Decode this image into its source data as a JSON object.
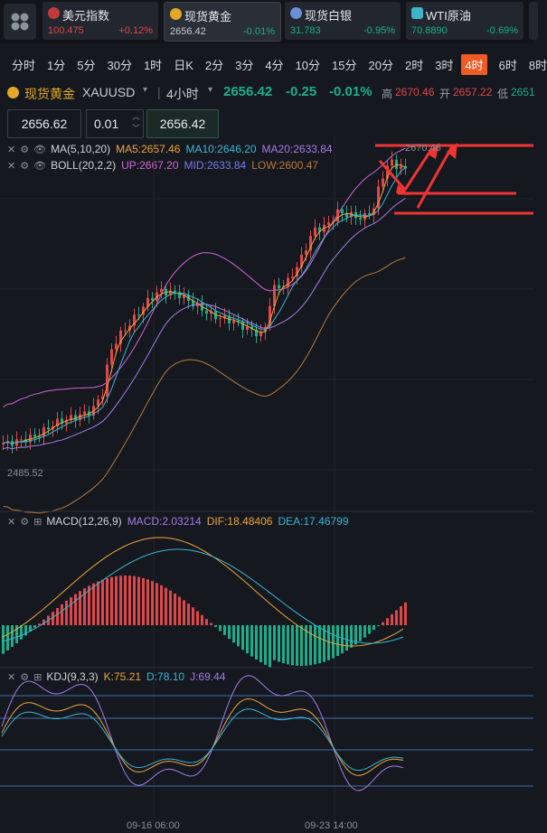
{
  "tickers": [
    {
      "name": "美元指数",
      "price": "100.475",
      "change": "+0.12%",
      "dir": "up",
      "icon": "us-flag-icon",
      "color": "#d04040"
    },
    {
      "name": "现货黄金",
      "price": "2656.42",
      "change": "-0.01%",
      "dir": "dn",
      "icon": "gold-coin-icon",
      "color": "#e2a826"
    },
    {
      "name": "现货白银",
      "price": "31.783",
      "change": "-0.95%",
      "dir": "dn",
      "icon": "silver-coin-icon",
      "color": "#6d8fd6"
    },
    {
      "name": "WTI原油",
      "price": "70.8890",
      "change": "-0.69%",
      "dir": "dn",
      "icon": "oil-icon",
      "color": "#3fb6c8"
    }
  ],
  "timeframes": [
    "分时",
    "1分",
    "5分",
    "30分",
    "1时",
    "日K",
    "2分",
    "3分",
    "4分",
    "10分",
    "15分",
    "20分",
    "2时",
    "3时",
    "4时",
    "6时",
    "8时"
  ],
  "active_timeframe": "4时",
  "symbol": {
    "name": "现货黄金",
    "code": "XAUUSD",
    "period": "4小时",
    "price": "2656.42",
    "change": "-0.25",
    "change_pct": "-0.01%",
    "high_label": "高",
    "high": "2670.46",
    "open_label": "开",
    "open": "2657.22",
    "low_label": "低",
    "low": "2651"
  },
  "order": {
    "sell_price": "2656.62",
    "lot": "0.01",
    "buy_price": "2656.42"
  },
  "ma": {
    "label": "MA(5,10,20)",
    "ma5": "MA5:2657.46",
    "ma10": "MA10:2646.20",
    "ma20": "MA20:2633.84",
    "c5": "#f0a43a",
    "c10": "#38b6d6",
    "c20": "#a57ce8"
  },
  "boll": {
    "label": "BOLL(20,2,2)",
    "up": "UP:2667.20",
    "mid": "MID:2633.84",
    "low": "LOW:2600.47",
    "cup": "#d266d6",
    "cmid": "#7a78ee",
    "clow": "#b57a40"
  },
  "main_chart": {
    "price_high_label": "2670.46",
    "price_low_label": "2485.52"
  },
  "macd": {
    "label": "MACD(12,26,9)",
    "macd": "MACD:2.03214",
    "dif": "DIF:18.48406",
    "dea": "DEA:17.46799"
  },
  "kdj": {
    "label": "KDJ(9,3,3)",
    "k": "K:75.21",
    "d": "D:78.10",
    "j": "J:69.44"
  },
  "x_axis": [
    "09-16 06:00",
    "09-23 14:00"
  ]
}
